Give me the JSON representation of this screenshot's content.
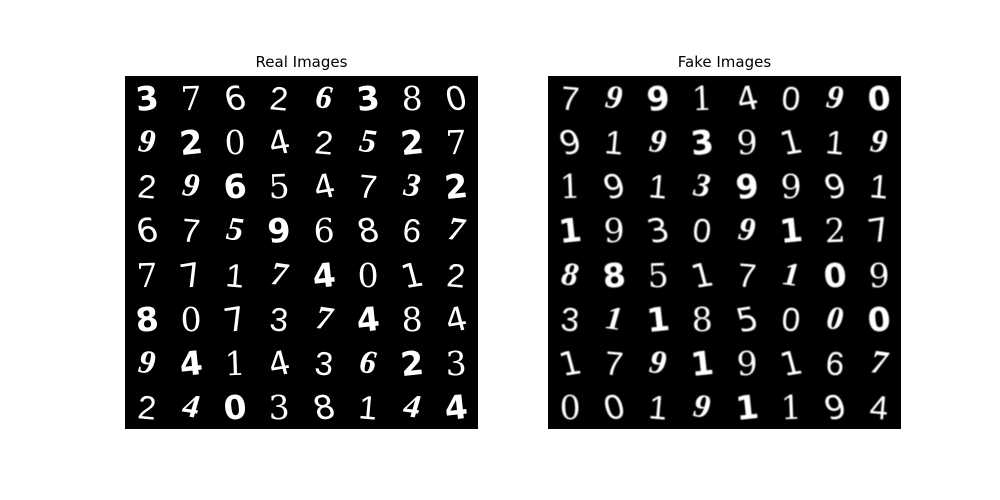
{
  "panels": [
    {
      "title": "Real Images",
      "grid": [
        [
          "3",
          "7",
          "6",
          "2",
          "6",
          "3",
          "8",
          "0"
        ],
        [
          "9",
          "2",
          "0",
          "4",
          "2",
          "5",
          "2",
          "7"
        ],
        [
          "2",
          "9",
          "6",
          "5",
          "4",
          "7",
          "3",
          "2"
        ],
        [
          "6",
          "7",
          "5",
          "9",
          "6",
          "8",
          "6",
          "7"
        ],
        [
          "7",
          "7",
          "1",
          "7",
          "4",
          "0",
          "1",
          "2"
        ],
        [
          "8",
          "0",
          "7",
          "3",
          "7",
          "4",
          "8",
          "4"
        ],
        [
          "9",
          "4",
          "1",
          "4",
          "3",
          "6",
          "2",
          "3"
        ],
        [
          "2",
          "4",
          "0",
          "3",
          "8",
          "1",
          "4",
          "4"
        ]
      ]
    },
    {
      "title": "Fake Images",
      "grid": [
        [
          "7",
          "9",
          "9",
          "1",
          "4",
          "0",
          "9",
          "0"
        ],
        [
          "9",
          "1",
          "9",
          "3",
          "9",
          "1",
          "1",
          "9"
        ],
        [
          "1",
          "9",
          "1",
          "3",
          "9",
          "9",
          "9",
          "1"
        ],
        [
          "1",
          "9",
          "3",
          "0",
          "9",
          "1",
          "2",
          "7"
        ],
        [
          "8",
          "8",
          "5",
          "1",
          "7",
          "1",
          "0",
          "9"
        ],
        [
          "3",
          "1",
          "1",
          "8",
          "5",
          "0",
          "0",
          "0"
        ],
        [
          "1",
          "7",
          "9",
          "1",
          "9",
          "1",
          "6",
          "7"
        ],
        [
          "0",
          "0",
          "1",
          "9",
          "1",
          "1",
          "9",
          "4"
        ]
      ]
    }
  ]
}
